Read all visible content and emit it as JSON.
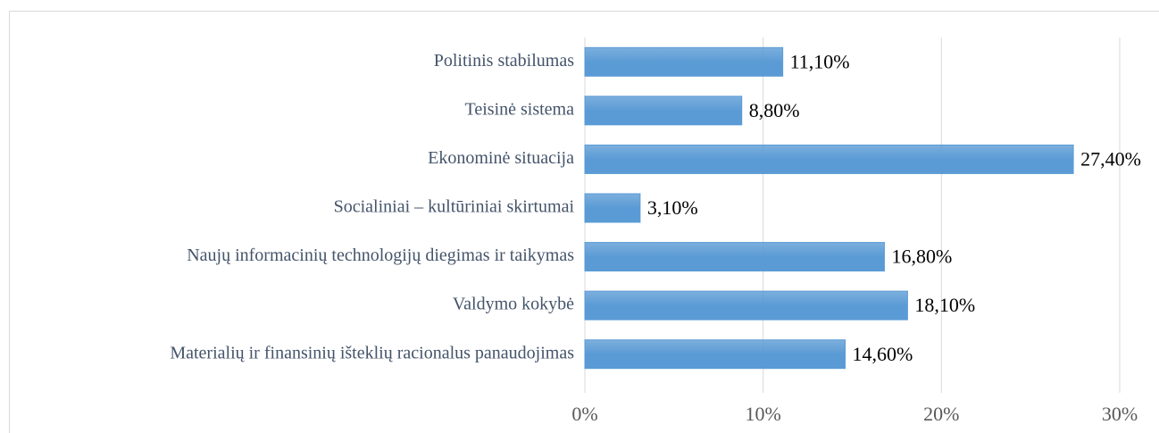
{
  "chart_data": {
    "type": "bar",
    "orientation": "horizontal",
    "categories": [
      "Politinis stabilumas",
      "Teisinė sistema",
      "Ekonominė situacija",
      "Socialiniai – kultūriniai skirtumai",
      "Naujų informacinių technologijų diegimas ir taikymas",
      "Valdymo kokybė",
      "Materialių ir finansinių išteklių racionalus panaudojimas"
    ],
    "values": [
      11.1,
      8.8,
      27.4,
      3.1,
      16.8,
      18.1,
      14.6
    ],
    "value_labels": [
      "11,10%",
      "8,80%",
      "27,40%",
      "3,10%",
      "16,80%",
      "18,10%",
      "14,60%"
    ],
    "color": "#5b9bd5",
    "xlim": [
      0,
      30
    ],
    "xticks": [
      {
        "value": 0,
        "label": "0%"
      },
      {
        "value": 10,
        "label": "10%"
      },
      {
        "value": 20,
        "label": "20%"
      },
      {
        "value": 30,
        "label": "30%"
      }
    ],
    "grid": true
  }
}
